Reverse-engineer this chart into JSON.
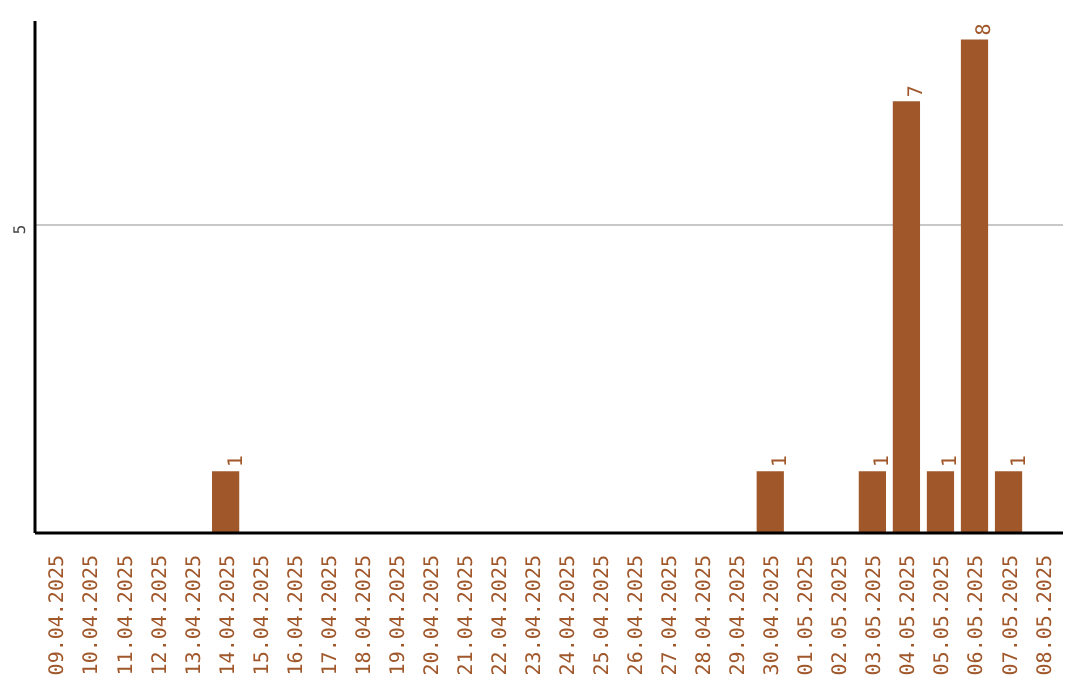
{
  "chart_data": {
    "type": "bar",
    "categories": [
      "09.04.2025",
      "10.04.2025",
      "11.04.2025",
      "12.04.2025",
      "13.04.2025",
      "14.04.2025",
      "15.04.2025",
      "16.04.2025",
      "17.04.2025",
      "18.04.2025",
      "19.04.2025",
      "20.04.2025",
      "21.04.2025",
      "22.04.2025",
      "23.04.2025",
      "24.04.2025",
      "25.04.2025",
      "26.04.2025",
      "27.04.2025",
      "28.04.2025",
      "29.04.2025",
      "30.04.2025",
      "01.05.2025",
      "02.05.2025",
      "03.05.2025",
      "04.05.2025",
      "05.05.2025",
      "06.05.2025",
      "07.05.2025",
      "08.05.2025"
    ],
    "values": [
      0,
      0,
      0,
      0,
      0,
      1,
      0,
      0,
      0,
      0,
      0,
      0,
      0,
      0,
      0,
      0,
      0,
      0,
      0,
      0,
      0,
      1,
      0,
      0,
      1,
      7,
      1,
      8,
      1,
      0
    ],
    "value_labels": [
      null,
      null,
      null,
      null,
      null,
      "1",
      null,
      null,
      null,
      null,
      null,
      null,
      null,
      null,
      null,
      null,
      null,
      null,
      null,
      null,
      null,
      "1",
      null,
      null,
      "1",
      "7",
      "1",
      "8",
      "1",
      null
    ],
    "color": "#a0572a",
    "ylim": [
      0,
      8.3
    ],
    "yticks": [
      5
    ],
    "grid": "y"
  }
}
